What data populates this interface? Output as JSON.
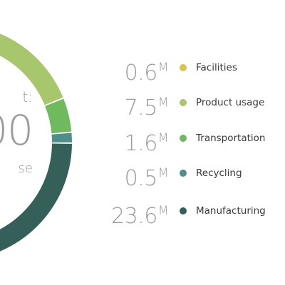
{
  "chart_data": {
    "type": "donut",
    "center": {
      "label_top": "t:",
      "value": "00",
      "label_bottom": "se"
    },
    "unit": "M",
    "series": [
      {
        "name": "Facilities",
        "value": 0.6,
        "display": "0.6",
        "color": "#d9c44b"
      },
      {
        "name": "Product usage",
        "value": 7.5,
        "display": "7.5",
        "color": "#a8c66c"
      },
      {
        "name": "Transportation",
        "value": 1.6,
        "display": "1.6",
        "color": "#6fb95f"
      },
      {
        "name": "Recycling",
        "value": 0.5,
        "display": "0.5",
        "color": "#4e8f8b"
      },
      {
        "name": "Manufacturing",
        "value": 23.6,
        "display": "23.6",
        "color": "#35605a"
      }
    ]
  }
}
